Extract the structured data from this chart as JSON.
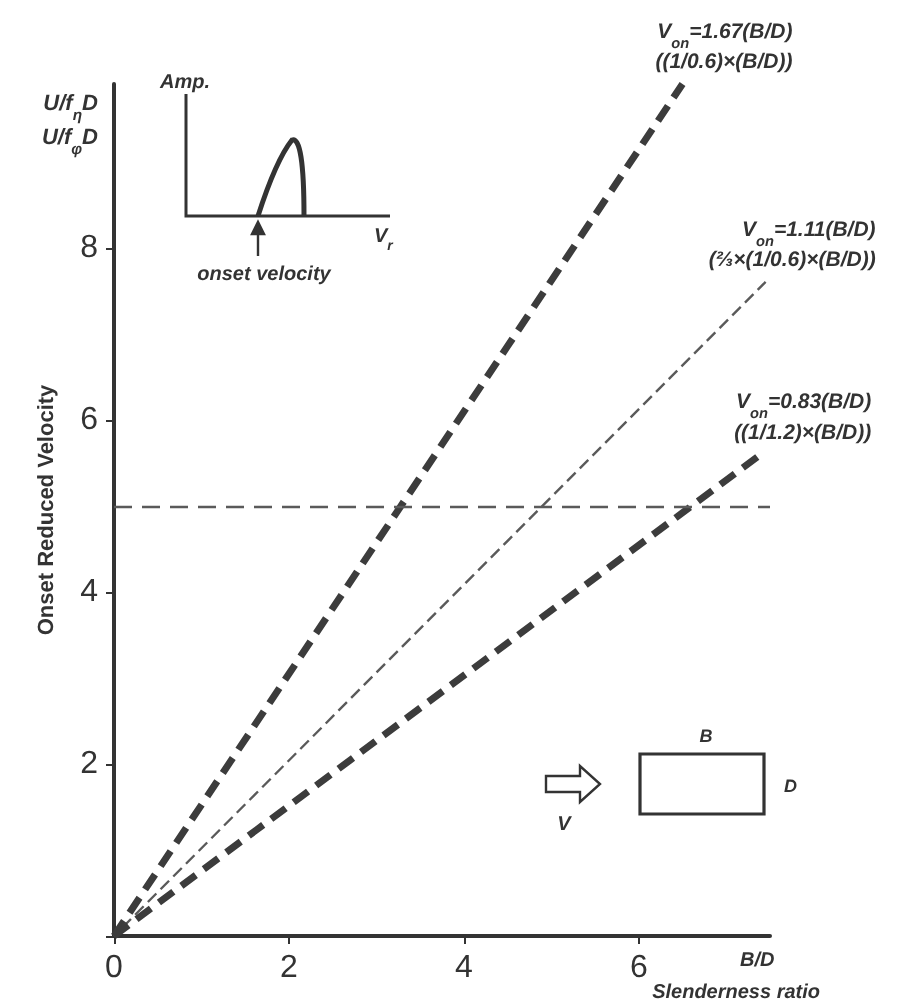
{
  "chart_data": {
    "type": "line",
    "ylabel": "Onset Reduced Velocity",
    "xlabel": "Slenderness ratio",
    "xlim": [
      0,
      7.5
    ],
    "xticks": [
      0,
      2,
      4,
      6
    ],
    "ylim": [
      0,
      9.9
    ],
    "yticks": [
      {
        "value": 0,
        "label": null
      },
      2,
      4,
      6,
      8
    ],
    "grid": false,
    "marker": "none",
    "series": [
      {
        "x": [
          0,
          6.5
        ],
        "values": [
          0,
          9.9
        ],
        "color": "#3c3c3c",
        "line_style": "dashed"
      },
      {
        "x": [
          0,
          7.45
        ],
        "values": [
          0,
          7.6
        ],
        "color": "#5a5a5a",
        "line_style": "dashed"
      },
      {
        "x": [
          0,
          7.4
        ],
        "values": [
          0,
          5.6
        ],
        "color": "#3c3c3c",
        "line_style": "dashed"
      }
    ],
    "ref_lines": [
      {
        "axis": "y",
        "value": 5,
        "color": "#5a5a5a",
        "line_style": "dashed"
      }
    ],
    "annotations": [
      "U/f$_{η}$D",
      "U/f$_{φ}$D",
      "Amp.",
      "V$_{r}$",
      "onset velocity",
      "B",
      "D",
      "V",
      "B/D",
      {
        "text": "V$_{on}$=1.67(B/D)\n((1/0.6)×(B/D))",
        "x": 6.5,
        "y": 9.9
      },
      {
        "text": "V$_{on}$=1.11(B/D)\n(⅔×(1/0.6)×(B/D))",
        "x": 7.45,
        "y": 7.6
      },
      {
        "text": "V$_{on}$=0.83(B/D)\n((1/1.2)×(B/D))",
        "x": 7.4,
        "y": 5.6
      }
    ]
  }
}
